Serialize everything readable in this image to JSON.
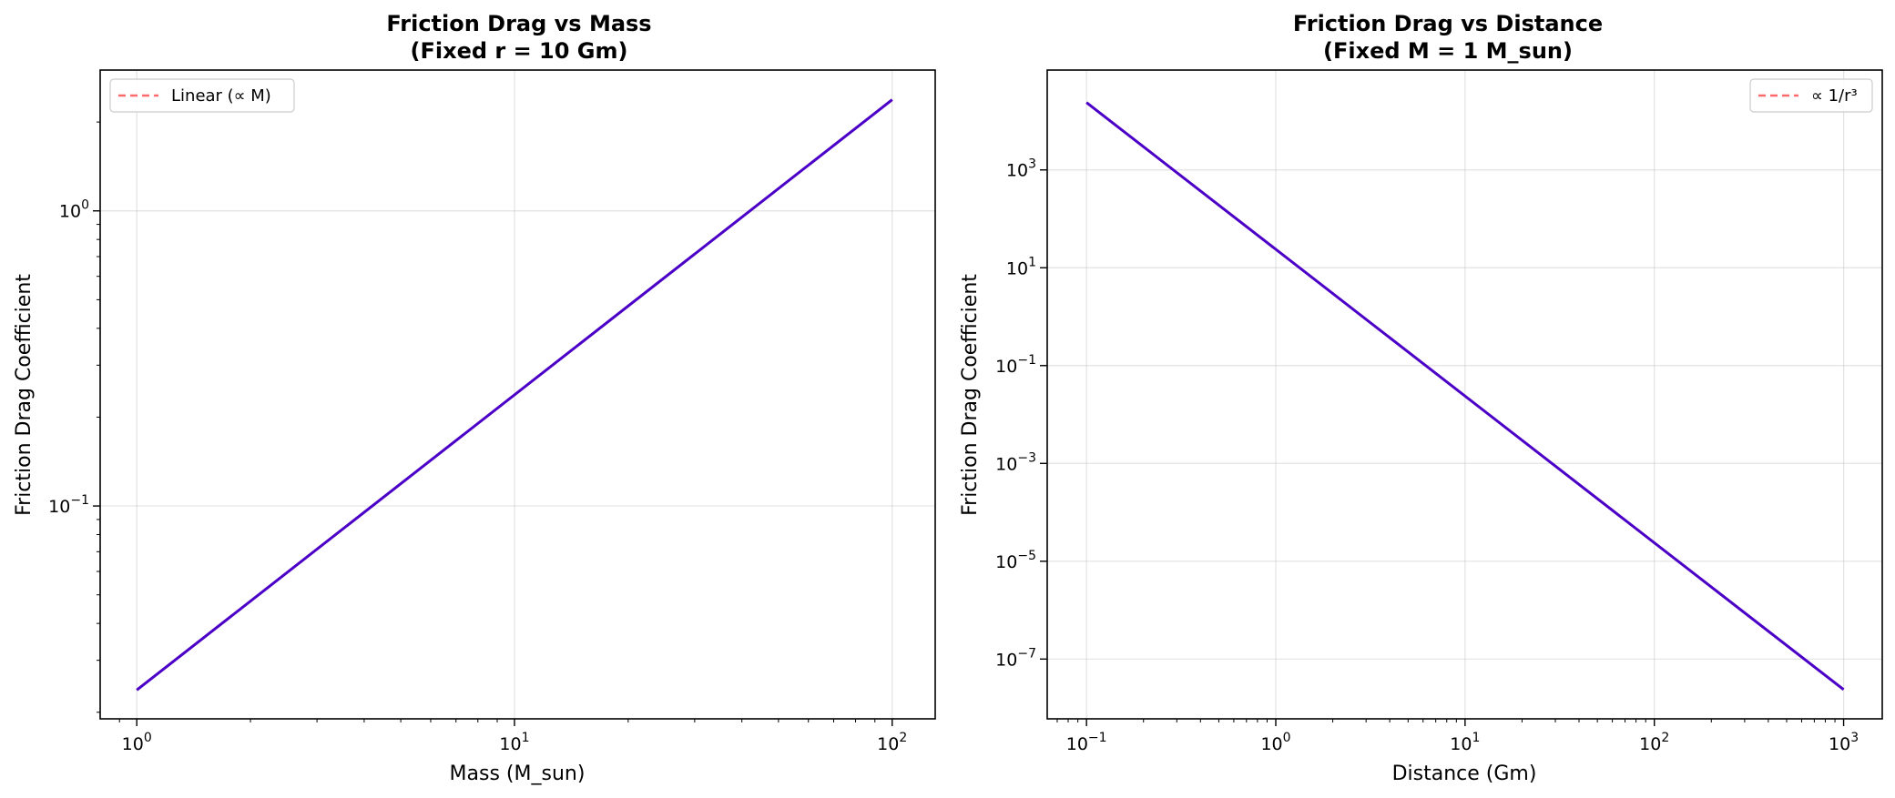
{
  "chart_data": [
    {
      "type": "line",
      "title": "Friction Drag vs Mass",
      "subtitle": "(Fixed r = 10 Gm)",
      "xlabel": "Mass (M_sun)",
      "ylabel": "Friction Drag Coefficient",
      "xscale": "log",
      "yscale": "log",
      "xlim": [
        0.8,
        130
      ],
      "ylim": [
        0.019,
        3.0
      ],
      "x_ticks": [
        {
          "value": 1,
          "mantissa": "10",
          "exp": "0"
        },
        {
          "value": 10,
          "mantissa": "10",
          "exp": "1"
        },
        {
          "value": 100,
          "mantissa": "10",
          "exp": "2"
        }
      ],
      "y_ticks": [
        {
          "value": 0.1,
          "mantissa": "10",
          "exp": "−1"
        },
        {
          "value": 1,
          "mantissa": "10",
          "exp": "0"
        }
      ],
      "grid": true,
      "legend_position": "upper-left",
      "series": [
        {
          "name": "Linear (∝ M)",
          "style": "dashed",
          "color": "#ff6b6b",
          "x": [
            1,
            100
          ],
          "y": [
            0.0238,
            2.38
          ]
        },
        {
          "style": "solid",
          "color": "#4b00c8",
          "x": [
            1,
            100
          ],
          "y": [
            0.0238,
            2.38
          ]
        }
      ]
    },
    {
      "type": "line",
      "title": "Friction Drag vs Distance",
      "subtitle": "(Fixed M = 1 M_sun)",
      "xlabel": "Distance (Gm)",
      "ylabel": "Friction Drag Coefficient",
      "xscale": "log",
      "yscale": "log",
      "xlim": [
        0.062,
        1600
      ],
      "ylim": [
        6e-09,
        110000
      ],
      "x_ticks": [
        {
          "value": 0.1,
          "mantissa": "10",
          "exp": "−1"
        },
        {
          "value": 1,
          "mantissa": "10",
          "exp": "0"
        },
        {
          "value": 10,
          "mantissa": "10",
          "exp": "1"
        },
        {
          "value": 100,
          "mantissa": "10",
          "exp": "2"
        },
        {
          "value": 1000,
          "mantissa": "10",
          "exp": "3"
        }
      ],
      "y_ticks": [
        {
          "value": 1e-07,
          "mantissa": "10",
          "exp": "−7"
        },
        {
          "value": 1e-05,
          "mantissa": "10",
          "exp": "−5"
        },
        {
          "value": 0.001,
          "mantissa": "10",
          "exp": "−3"
        },
        {
          "value": 0.1,
          "mantissa": "10",
          "exp": "−1"
        },
        {
          "value": 10,
          "mantissa": "10",
          "exp": "1"
        },
        {
          "value": 1000,
          "mantissa": "10",
          "exp": "3"
        }
      ],
      "grid": true,
      "legend_position": "upper-right",
      "series": [
        {
          "name": "∝ 1/r³",
          "style": "dashed",
          "color": "#ff6b6b",
          "x": [
            0.1,
            1000
          ],
          "y": [
            23800,
            2.38e-08
          ]
        },
        {
          "style": "solid",
          "color": "#4b00c8",
          "x": [
            0.1,
            1000
          ],
          "y": [
            23800,
            2.38e-08
          ]
        }
      ]
    }
  ]
}
